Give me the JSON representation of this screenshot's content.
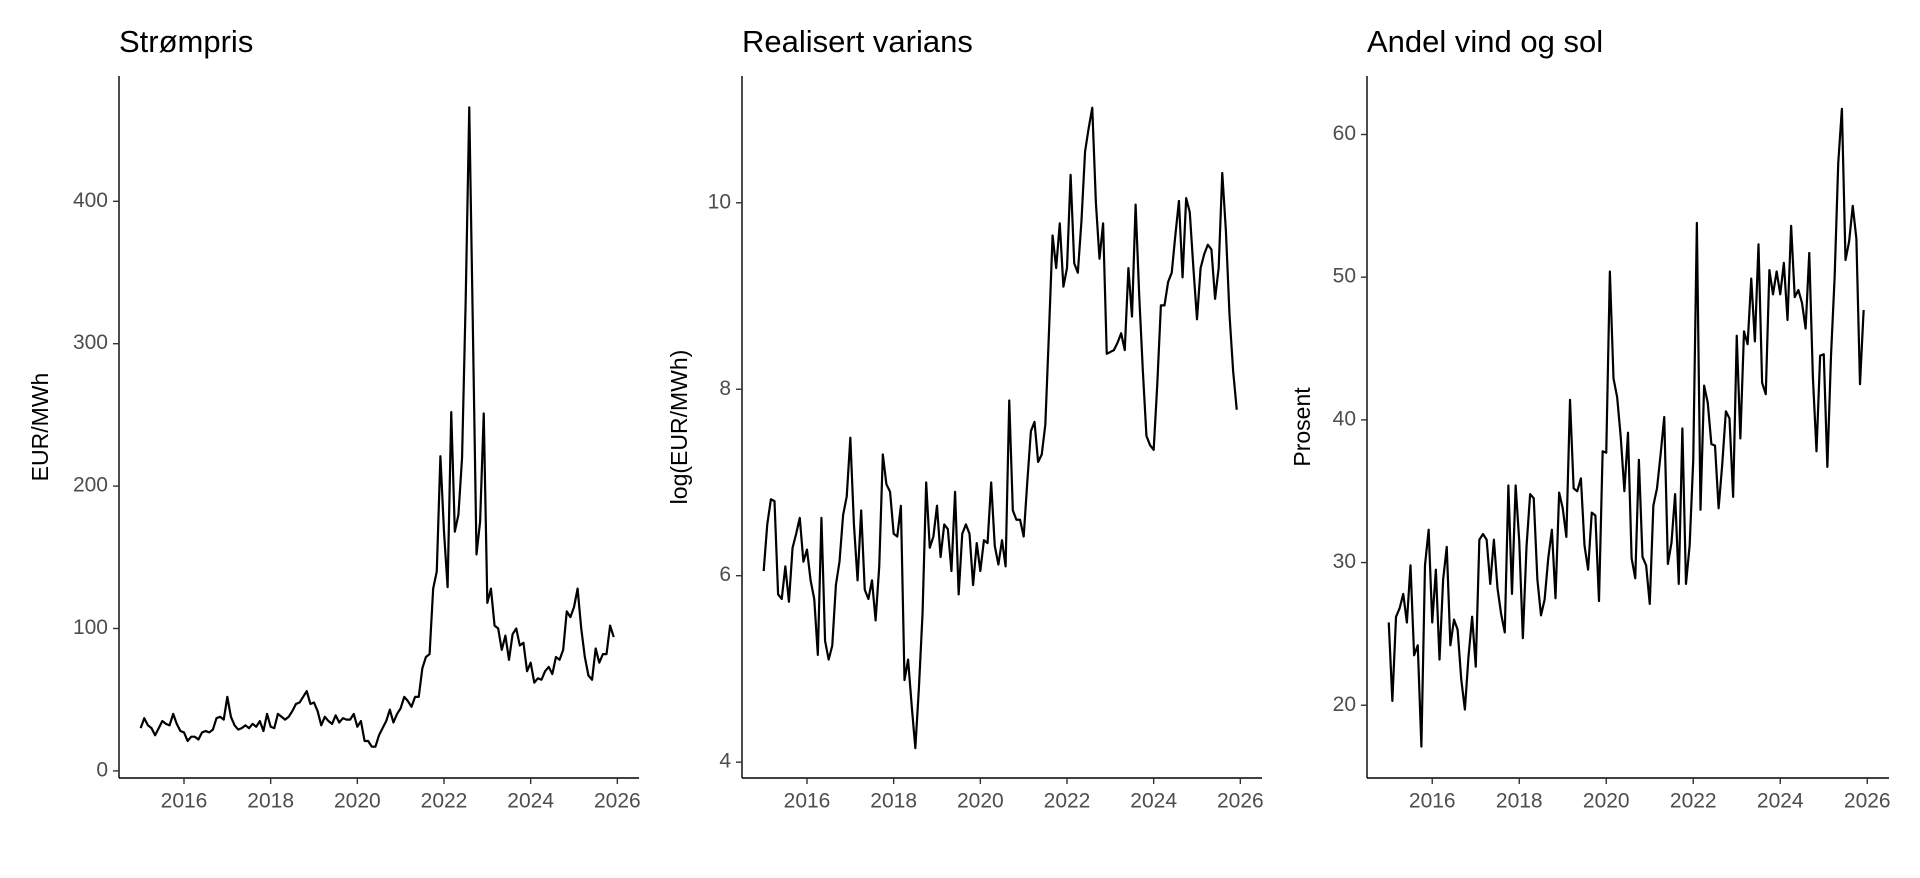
{
  "chart_data": [
    {
      "type": "line",
      "title": "Strømpris",
      "y_label": "EUR/MWh",
      "color": "#000000",
      "x": [
        2015,
        2015.083,
        2015.167,
        2015.25,
        2015.333,
        2015.417,
        2015.5,
        2015.583,
        2015.667,
        2015.75,
        2015.833,
        2015.917,
        2016,
        2016.083,
        2016.167,
        2016.25,
        2016.333,
        2016.417,
        2016.5,
        2016.583,
        2016.667,
        2016.75,
        2016.833,
        2016.917,
        2017,
        2017.083,
        2017.167,
        2017.25,
        2017.333,
        2017.417,
        2017.5,
        2017.583,
        2017.667,
        2017.75,
        2017.833,
        2017.917,
        2018,
        2018.083,
        2018.167,
        2018.25,
        2018.333,
        2018.417,
        2018.5,
        2018.583,
        2018.667,
        2018.75,
        2018.833,
        2018.917,
        2019,
        2019.083,
        2019.167,
        2019.25,
        2019.333,
        2019.417,
        2019.5,
        2019.583,
        2019.667,
        2019.75,
        2019.833,
        2019.917,
        2020,
        2020.083,
        2020.167,
        2020.25,
        2020.333,
        2020.417,
        2020.5,
        2020.583,
        2020.667,
        2020.75,
        2020.833,
        2020.917,
        2021,
        2021.083,
        2021.167,
        2021.25,
        2021.333,
        2021.417,
        2021.5,
        2021.583,
        2021.667,
        2021.75,
        2021.833,
        2021.917,
        2022,
        2022.083,
        2022.167,
        2022.25,
        2022.333,
        2022.417,
        2022.5,
        2022.583,
        2022.667,
        2022.75,
        2022.833,
        2022.917,
        2023,
        2023.083,
        2023.167,
        2023.25,
        2023.333,
        2023.417,
        2023.5,
        2023.583,
        2023.667,
        2023.75,
        2023.833,
        2023.917,
        2024,
        2024.083,
        2024.167,
        2024.25,
        2024.333,
        2024.417,
        2024.5,
        2024.583,
        2024.667,
        2024.75,
        2024.833,
        2024.917,
        2025,
        2025.083,
        2025.167,
        2025.25,
        2025.333,
        2025.417,
        2025.5,
        2025.583,
        2025.667,
        2025.75,
        2025.833,
        2025.917
      ],
      "values": [
        30,
        37,
        32,
        30,
        25,
        30,
        35,
        33,
        32,
        40,
        33,
        28,
        27,
        21,
        24,
        24,
        22,
        27,
        28,
        27,
        29,
        37,
        38,
        36,
        52,
        38,
        32,
        29,
        30,
        32,
        30,
        33,
        31,
        35,
        28,
        40,
        31,
        30,
        40,
        38,
        36,
        38,
        42,
        47,
        48,
        52,
        56,
        47,
        48,
        42,
        32,
        38,
        35,
        33,
        39,
        34,
        37,
        36,
        36,
        40,
        31,
        35,
        21,
        21,
        17,
        17,
        25,
        30,
        35,
        43,
        34,
        40,
        44,
        52,
        49,
        45,
        52,
        52,
        72,
        80,
        82,
        128,
        140,
        221,
        168,
        129,
        252,
        168,
        180,
        220,
        330,
        466,
        310,
        152,
        175,
        251,
        118,
        128,
        102,
        100,
        85,
        95,
        78,
        96,
        100,
        88,
        90,
        70,
        76,
        62,
        65,
        64,
        70,
        73,
        68,
        80,
        78,
        85,
        112,
        108,
        115,
        128,
        100,
        80,
        67,
        64,
        86,
        76,
        82,
        82,
        102,
        94
      ],
      "xlim": [
        2014.5,
        2026.5
      ],
      "xticks": [
        2016,
        2018,
        2020,
        2022,
        2024,
        2026
      ],
      "ylim": [
        -5,
        488
      ],
      "yticks": [
        0,
        100,
        200,
        300,
        400
      ]
    },
    {
      "type": "line",
      "title": "Realisert varians",
      "y_label": "log(EUR/MWh)",
      "color": "#000000",
      "x": [
        2015,
        2015.083,
        2015.167,
        2015.25,
        2015.333,
        2015.417,
        2015.5,
        2015.583,
        2015.667,
        2015.75,
        2015.833,
        2015.917,
        2016,
        2016.083,
        2016.167,
        2016.25,
        2016.333,
        2016.417,
        2016.5,
        2016.583,
        2016.667,
        2016.75,
        2016.833,
        2016.917,
        2017,
        2017.083,
        2017.167,
        2017.25,
        2017.333,
        2017.417,
        2017.5,
        2017.583,
        2017.667,
        2017.75,
        2017.833,
        2017.917,
        2018,
        2018.083,
        2018.167,
        2018.25,
        2018.333,
        2018.417,
        2018.5,
        2018.583,
        2018.667,
        2018.75,
        2018.833,
        2018.917,
        2019,
        2019.083,
        2019.167,
        2019.25,
        2019.333,
        2019.417,
        2019.5,
        2019.583,
        2019.667,
        2019.75,
        2019.833,
        2019.917,
        2020,
        2020.083,
        2020.167,
        2020.25,
        2020.333,
        2020.417,
        2020.5,
        2020.583,
        2020.667,
        2020.75,
        2020.833,
        2020.917,
        2021,
        2021.083,
        2021.167,
        2021.25,
        2021.333,
        2021.417,
        2021.5,
        2021.583,
        2021.667,
        2021.75,
        2021.833,
        2021.917,
        2022,
        2022.083,
        2022.167,
        2022.25,
        2022.333,
        2022.417,
        2022.5,
        2022.583,
        2022.667,
        2022.75,
        2022.833,
        2022.917,
        2023,
        2023.083,
        2023.167,
        2023.25,
        2023.333,
        2023.417,
        2023.5,
        2023.583,
        2023.667,
        2023.75,
        2023.833,
        2023.917,
        2024,
        2024.083,
        2024.167,
        2024.25,
        2024.333,
        2024.417,
        2024.5,
        2024.583,
        2024.667,
        2024.75,
        2024.833,
        2024.917,
        2025,
        2025.083,
        2025.167,
        2025.25,
        2025.333,
        2025.417,
        2025.5,
        2025.583,
        2025.667,
        2025.75,
        2025.833,
        2025.917
      ],
      "values": [
        6.05,
        6.55,
        6.82,
        6.8,
        5.8,
        5.75,
        6.1,
        5.72,
        6.3,
        6.45,
        6.62,
        6.15,
        6.28,
        5.95,
        5.75,
        5.15,
        6.62,
        5.3,
        5.1,
        5.25,
        5.9,
        6.15,
        6.65,
        6.85,
        7.48,
        6.55,
        5.95,
        6.7,
        5.85,
        5.75,
        5.95,
        5.52,
        6.1,
        7.3,
        6.98,
        6.9,
        6.45,
        6.42,
        6.75,
        4.88,
        5.1,
        4.6,
        4.15,
        4.8,
        5.6,
        7.0,
        6.3,
        6.42,
        6.75,
        6.2,
        6.55,
        6.5,
        6.05,
        6.9,
        5.8,
        6.45,
        6.55,
        6.45,
        5.9,
        6.35,
        6.05,
        6.38,
        6.35,
        7.0,
        6.32,
        6.12,
        6.38,
        6.1,
        7.88,
        6.7,
        6.6,
        6.6,
        6.42,
        7.0,
        7.55,
        7.65,
        7.22,
        7.3,
        7.62,
        8.6,
        9.65,
        9.3,
        9.78,
        9.1,
        9.3,
        10.3,
        9.35,
        9.25,
        9.8,
        10.55,
        10.8,
        11.02,
        10.0,
        9.4,
        9.78,
        8.38,
        8.4,
        8.42,
        8.5,
        8.6,
        8.42,
        9.3,
        8.78,
        9.98,
        9.0,
        8.2,
        7.5,
        7.4,
        7.35,
        8.05,
        8.9,
        8.9,
        9.15,
        9.25,
        9.65,
        10.02,
        9.2,
        10.05,
        9.9,
        9.3,
        8.75,
        9.3,
        9.45,
        9.55,
        9.5,
        8.97,
        9.3,
        10.32,
        9.7,
        8.8,
        8.2,
        7.78
      ],
      "xlim": [
        2014.5,
        2026.5
      ],
      "xticks": [
        2016,
        2018,
        2020,
        2022,
        2024,
        2026
      ],
      "ylim": [
        3.83,
        11.36
      ],
      "yticks": [
        4,
        6,
        8,
        10
      ]
    },
    {
      "type": "line",
      "title": "Andel vind og sol",
      "y_label": "Prosent",
      "color": "#000000",
      "x": [
        2015,
        2015.083,
        2015.167,
        2015.25,
        2015.333,
        2015.417,
        2015.5,
        2015.583,
        2015.667,
        2015.75,
        2015.833,
        2015.917,
        2016,
        2016.083,
        2016.167,
        2016.25,
        2016.333,
        2016.417,
        2016.5,
        2016.583,
        2016.667,
        2016.75,
        2016.833,
        2016.917,
        2017,
        2017.083,
        2017.167,
        2017.25,
        2017.333,
        2017.417,
        2017.5,
        2017.583,
        2017.667,
        2017.75,
        2017.833,
        2017.917,
        2018,
        2018.083,
        2018.167,
        2018.25,
        2018.333,
        2018.417,
        2018.5,
        2018.583,
        2018.667,
        2018.75,
        2018.833,
        2018.917,
        2019,
        2019.083,
        2019.167,
        2019.25,
        2019.333,
        2019.417,
        2019.5,
        2019.583,
        2019.667,
        2019.75,
        2019.833,
        2019.917,
        2020,
        2020.083,
        2020.167,
        2020.25,
        2020.333,
        2020.417,
        2020.5,
        2020.583,
        2020.667,
        2020.75,
        2020.833,
        2020.917,
        2021,
        2021.083,
        2021.167,
        2021.25,
        2021.333,
        2021.417,
        2021.5,
        2021.583,
        2021.667,
        2021.75,
        2021.833,
        2021.917,
        2022,
        2022.083,
        2022.167,
        2022.25,
        2022.333,
        2022.417,
        2022.5,
        2022.583,
        2022.667,
        2022.75,
        2022.833,
        2022.917,
        2023,
        2023.083,
        2023.167,
        2023.25,
        2023.333,
        2023.417,
        2023.5,
        2023.583,
        2023.667,
        2023.75,
        2023.833,
        2023.917,
        2024,
        2024.083,
        2024.167,
        2024.25,
        2024.333,
        2024.417,
        2024.5,
        2024.583,
        2024.667,
        2024.75,
        2024.833,
        2024.917,
        2025,
        2025.083,
        2025.167,
        2025.25,
        2025.333,
        2025.417,
        2025.5,
        2025.583,
        2025.667,
        2025.75,
        2025.833,
        2025.917
      ],
      "values": [
        25.8,
        20.3,
        26.2,
        26.8,
        27.8,
        25.8,
        29.8,
        23.5,
        24.2,
        17.1,
        29.8,
        32.3,
        25.8,
        29.5,
        23.2,
        28.8,
        31.1,
        24.2,
        26.0,
        25.3,
        21.8,
        19.7,
        23.4,
        26.2,
        22.7,
        31.6,
        32.0,
        31.6,
        28.5,
        31.6,
        28.2,
        26.4,
        25.1,
        35.4,
        27.8,
        35.4,
        31.5,
        24.7,
        31.1,
        34.8,
        34.5,
        28.8,
        26.3,
        27.4,
        30.3,
        32.3,
        27.5,
        34.9,
        33.8,
        31.8,
        41.4,
        35.2,
        35.0,
        35.9,
        31.2,
        29.5,
        33.5,
        33.3,
        27.3,
        37.8,
        37.7,
        50.4,
        42.9,
        41.6,
        38.8,
        35.0,
        39.1,
        30.3,
        28.9,
        37.2,
        30.4,
        29.8,
        27.1,
        34.0,
        35.2,
        37.6,
        40.2,
        29.9,
        31.4,
        34.8,
        28.5,
        39.4,
        28.5,
        31.2,
        37.2,
        53.8,
        33.7,
        42.4,
        41.2,
        38.3,
        38.2,
        33.8,
        36.9,
        40.6,
        40.1,
        34.6,
        45.9,
        38.7,
        46.2,
        45.3,
        49.9,
        45.5,
        52.3,
        42.6,
        41.8,
        50.5,
        48.8,
        50.4,
        48.8,
        51.0,
        47.0,
        53.6,
        48.6,
        49.1,
        48.2,
        46.4,
        51.7,
        43.0,
        37.8,
        44.5,
        44.6,
        36.7,
        44.5,
        50.0,
        58.0,
        61.8,
        51.2,
        52.5,
        55.0,
        52.7,
        42.5,
        47.7
      ],
      "xlim": [
        2014.5,
        2026.5
      ],
      "xticks": [
        2016,
        2018,
        2020,
        2022,
        2024,
        2026
      ],
      "ylim": [
        14.9,
        64.1
      ],
      "yticks": [
        20,
        30,
        40,
        50,
        60
      ]
    }
  ]
}
